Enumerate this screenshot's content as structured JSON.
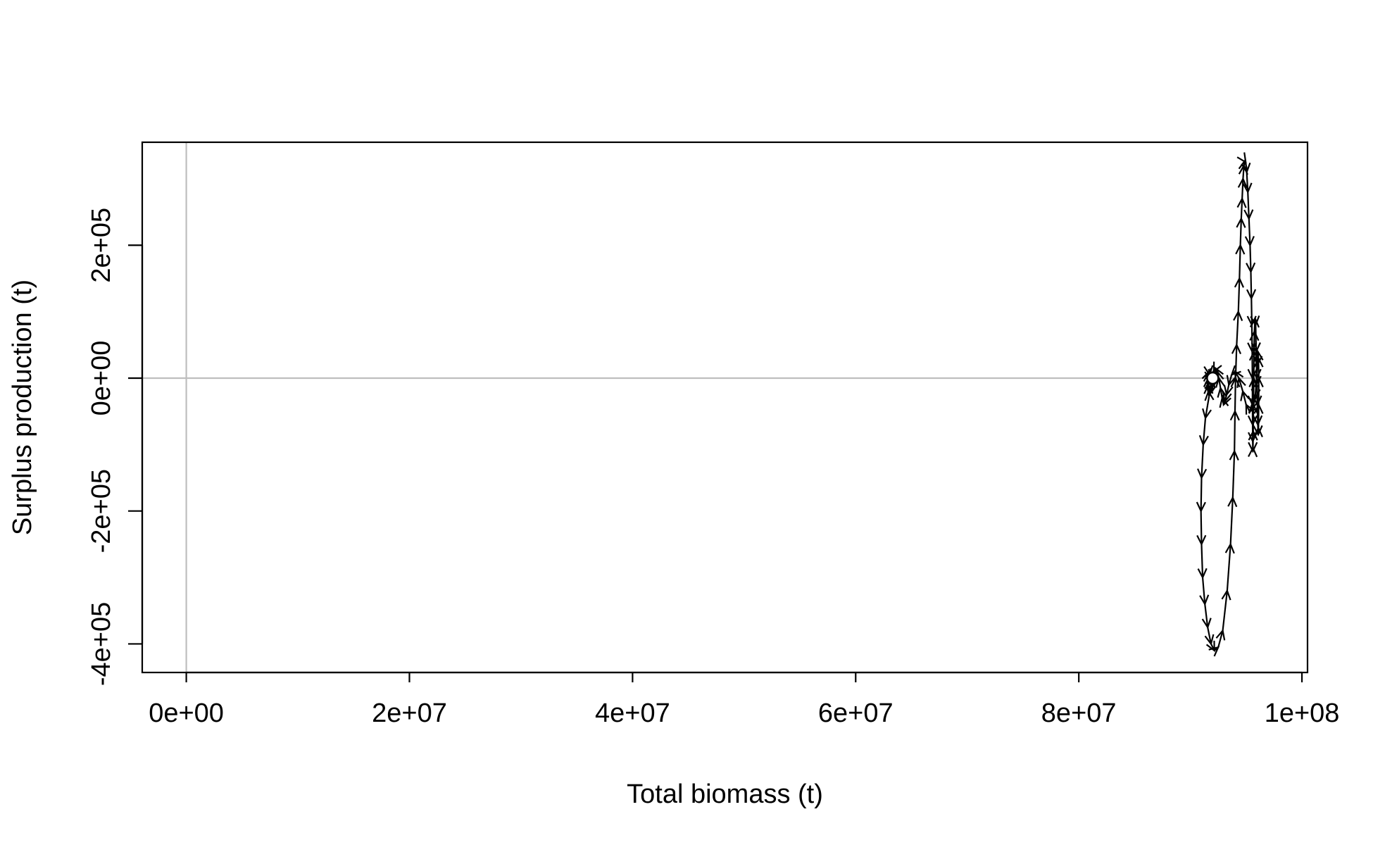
{
  "chart_data": {
    "type": "line",
    "title": "",
    "xlabel": "Total biomass (t)",
    "ylabel": "Surplus production (t)",
    "xlim": [
      -3950000,
      100500000
    ],
    "ylim": [
      -443000,
      355000
    ],
    "x_ticks": [
      {
        "value": 0,
        "label": "0e+00"
      },
      {
        "value": 20000000,
        "label": "2e+07"
      },
      {
        "value": 40000000,
        "label": "4e+07"
      },
      {
        "value": 60000000,
        "label": "6e+07"
      },
      {
        "value": 80000000,
        "label": "8e+07"
      },
      {
        "value": 100000000,
        "label": "1e+08"
      }
    ],
    "y_ticks": [
      {
        "value": -400000,
        "label": "-4e+05"
      },
      {
        "value": -200000,
        "label": "-2e+05"
      },
      {
        "value": 0,
        "label": "0e+00"
      },
      {
        "value": 200000,
        "label": "2e+05"
      }
    ],
    "reference_lines": {
      "x": 0,
      "y": 0,
      "color": "#bebebe"
    },
    "line_color": "#000000",
    "start_point_color": "#ffffff",
    "grid": false,
    "series": [
      {
        "x": [
          92000000,
          91700000,
          91350000,
          91150000,
          91000000,
          90950000,
          91000000,
          91100000,
          91300000,
          91550000,
          91850000,
          92150000,
          92500000,
          92900000,
          93300000,
          93600000,
          93800000,
          93950000,
          94000000,
          94050000,
          94150000,
          94300000,
          94400000,
          94480000,
          94560000,
          94640000,
          94720000,
          94800000,
          94880000,
          94960000,
          95050000,
          95150000,
          95250000,
          95350000,
          95420000,
          95470000,
          95510000,
          95540000,
          95560000,
          95570000,
          95580000,
          95590000,
          95600000,
          95610000,
          95630000,
          95650000,
          95680000,
          95710000,
          95740000,
          95800000,
          95850000,
          95900000,
          95950000,
          96000000,
          96050000,
          96080000,
          96100000,
          96120000,
          96130000,
          96100000,
          96050000,
          96000000,
          95900000,
          95800000,
          95600000,
          95300000,
          95000000,
          94700000,
          94350000,
          94000000,
          93700000,
          93450000,
          93250000,
          93100000,
          92980000,
          92850000,
          92700000,
          92550000,
          92400000,
          92250000,
          92100000,
          91950000,
          91820000,
          91720000,
          91650000,
          91620000,
          91600000,
          91610000,
          91640000,
          91680000,
          91720000,
          91780000,
          91840000,
          91900000,
          91950000,
          92000000,
          92000000
        ],
        "y": [
          0,
          -25000,
          -60000,
          -100000,
          -150000,
          -200000,
          -250000,
          -300000,
          -340000,
          -375000,
          -400000,
          -410000,
          -405000,
          -380000,
          -320000,
          -250000,
          -180000,
          -110000,
          -50000,
          0,
          50000,
          100000,
          150000,
          200000,
          240000,
          270000,
          300000,
          320000,
          327000,
          325000,
          310000,
          280000,
          240000,
          200000,
          160000,
          120000,
          80000,
          40000,
          0,
          -40000,
          -70000,
          -95000,
          -110000,
          -105000,
          -80000,
          -40000,
          0,
          40000,
          70000,
          90000,
          80000,
          40000,
          0,
          -40000,
          -70000,
          -85000,
          -75000,
          -40000,
          0,
          30000,
          40000,
          20000,
          -10000,
          -30000,
          -45000,
          -50000,
          -40000,
          -20000,
          0,
          10000,
          5000,
          -10000,
          -25000,
          -35000,
          -40000,
          -30000,
          -15000,
          0,
          10000,
          15000,
          10000,
          0,
          -10000,
          -20000,
          -25000,
          -20000,
          -10000,
          0,
          8000,
          10000,
          5000,
          -3000,
          -8000,
          -5000,
          0,
          2000,
          0
        ]
      }
    ]
  }
}
